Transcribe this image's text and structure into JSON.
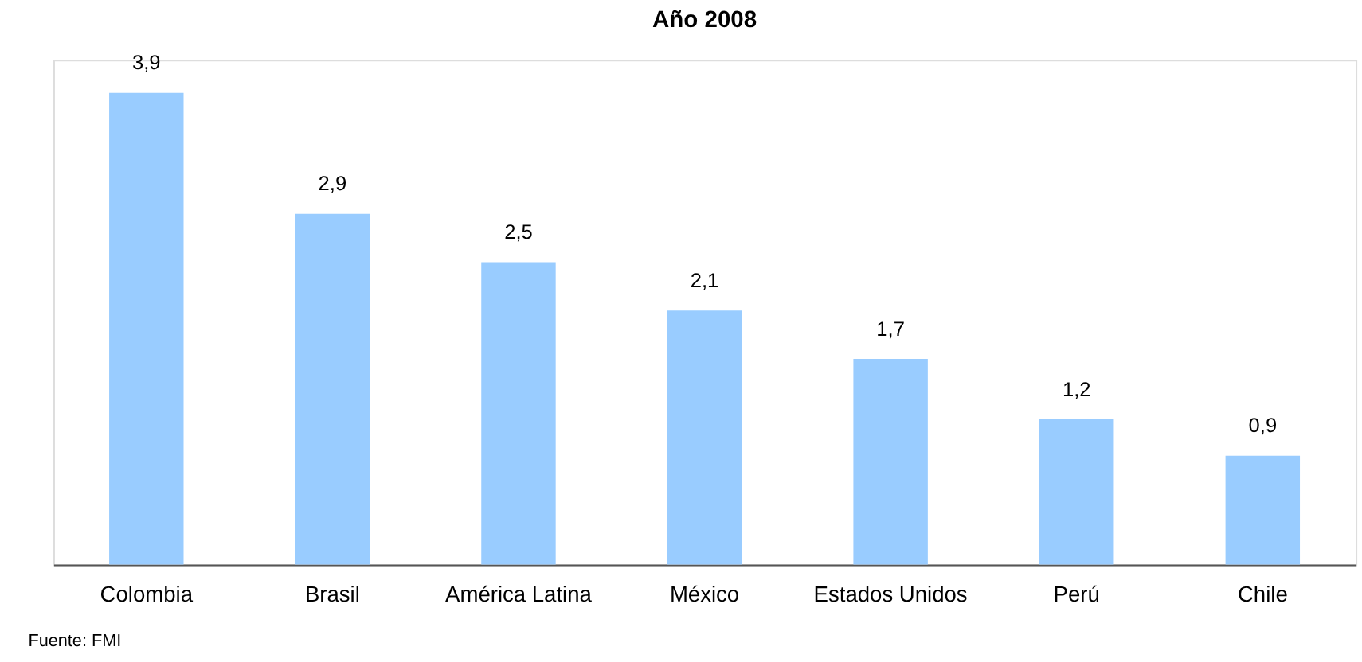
{
  "chart_data": {
    "type": "bar",
    "title": "Año 2008",
    "categories": [
      "Colombia",
      "Brasil",
      "América Latina",
      "México",
      "Estados Unidos",
      "Perú",
      "Chile"
    ],
    "values": [
      3.9,
      2.9,
      2.5,
      2.1,
      1.7,
      1.2,
      0.9
    ],
    "value_labels": [
      "3,9",
      "2,9",
      "2,5",
      "2,1",
      "1,7",
      "1,2",
      "0,9"
    ],
    "color": "#99ccff",
    "annotations": [
      "Fuente: FMI"
    ]
  }
}
